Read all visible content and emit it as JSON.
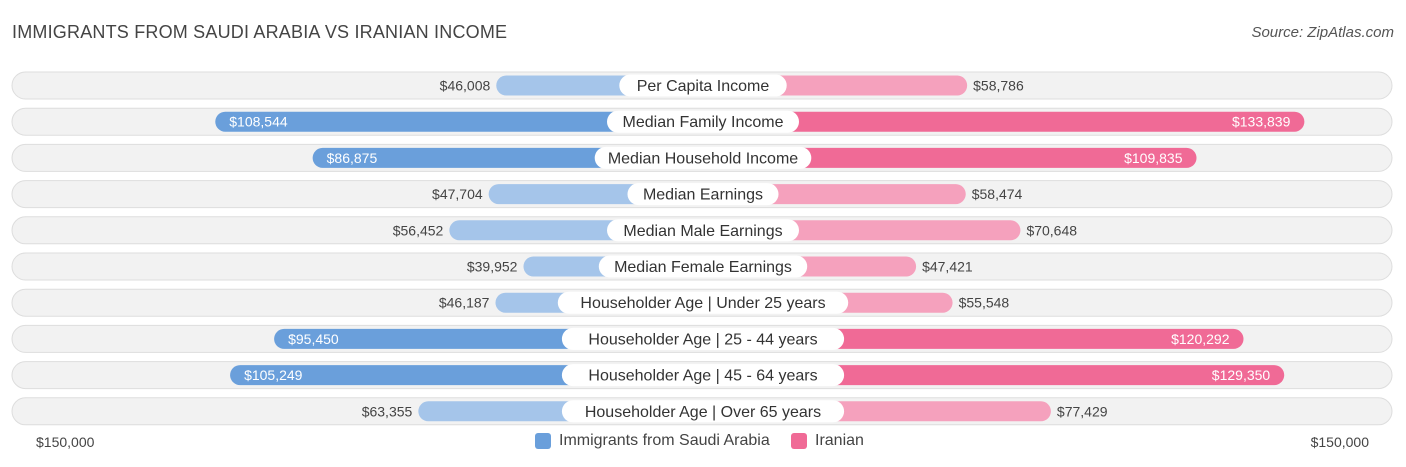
{
  "title": "IMMIGRANTS FROM SAUDI ARABIA VS IRANIAN INCOME",
  "source": "Source: ZipAtlas.com",
  "axis": {
    "left_label": "$150,000",
    "right_label": "$150,000"
  },
  "colors": {
    "left_strong": "#6a9fdb",
    "left_light": "#a5c5ea",
    "right_strong": "#f06a96",
    "right_light": "#f5a1bd",
    "row_bg": "#f2f2f2",
    "row_border": "#dddddd"
  },
  "legend": [
    {
      "label": "Immigrants from Saudi Arabia",
      "color": "#6a9fdb"
    },
    {
      "label": "Iranian",
      "color": "#f06a96"
    }
  ],
  "chart_data": {
    "type": "bar",
    "orientation": "horizontal-diverging",
    "max": 150000,
    "categories": [
      "Per Capita Income",
      "Median Family Income",
      "Median Household Income",
      "Median Earnings",
      "Median Male Earnings",
      "Median Female Earnings",
      "Householder Age | Under 25 years",
      "Householder Age | 25 - 44 years",
      "Householder Age | 45 - 64 years",
      "Householder Age | Over 65 years"
    ],
    "series": [
      {
        "name": "Immigrants from Saudi Arabia",
        "values": [
          46008,
          108544,
          86875,
          47704,
          56452,
          39952,
          46187,
          95450,
          105249,
          63355
        ],
        "labels": [
          "$46,008",
          "$108,544",
          "$86,875",
          "$47,704",
          "$56,452",
          "$39,952",
          "$46,187",
          "$95,450",
          "$105,249",
          "$63,355"
        ]
      },
      {
        "name": "Iranian",
        "values": [
          58786,
          133839,
          109835,
          58474,
          70648,
          47421,
          55548,
          120292,
          129350,
          77429
        ],
        "labels": [
          "$58,786",
          "$133,839",
          "$109,835",
          "$58,474",
          "$70,648",
          "$47,421",
          "$55,548",
          "$120,292",
          "$129,350",
          "$77,429"
        ]
      }
    ]
  }
}
